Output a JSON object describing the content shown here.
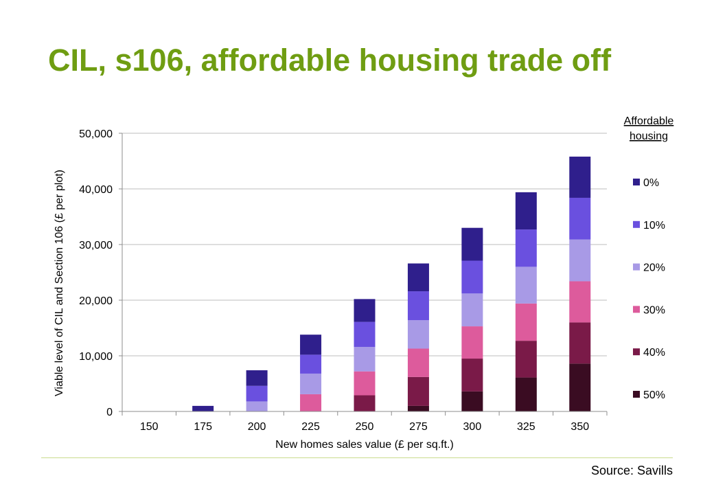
{
  "page": {
    "title": "CIL, s106, affordable housing trade off",
    "source": "Source: Savills"
  },
  "chart_data": {
    "type": "bar",
    "stacked": true,
    "title": "",
    "xlabel": "New homes sales value (£ per sq.ft.)",
    "ylabel": "Viable level of CIL and Section 106 (£ per plot)",
    "ylim": [
      0,
      50000
    ],
    "yticks": [
      "0",
      "10,000",
      "20,000",
      "30,000",
      "40,000",
      "50,000"
    ],
    "ytick_values": [
      0,
      10000,
      20000,
      30000,
      40000,
      50000
    ],
    "grid": true,
    "legend_title": "Affordable housing",
    "legend_position": "right",
    "categories": [
      "150",
      "175",
      "200",
      "225",
      "250",
      "275",
      "300",
      "325",
      "350"
    ],
    "series": [
      {
        "name": "50%",
        "color": "#3a0c22",
        "values": [
          0,
          0,
          0,
          0,
          0,
          1000,
          3600,
          6100,
          8600
        ]
      },
      {
        "name": "40%",
        "color": "#7a1a48",
        "values": [
          0,
          0,
          0,
          0,
          2900,
          5200,
          5900,
          6600,
          7400
        ]
      },
      {
        "name": "30%",
        "color": "#dd5b9c",
        "values": [
          0,
          0,
          0,
          3100,
          4300,
          5100,
          5800,
          6700,
          7400
        ]
      },
      {
        "name": "20%",
        "color": "#a89ae6",
        "values": [
          0,
          0,
          1800,
          3700,
          4400,
          5100,
          5900,
          6600,
          7500
        ]
      },
      {
        "name": "10%",
        "color": "#6a50df",
        "values": [
          0,
          0,
          2800,
          3400,
          4500,
          5200,
          5900,
          6700,
          7500
        ]
      },
      {
        "name": "0%",
        "color": "#2f1f8c",
        "values": [
          0,
          1000,
          2800,
          3600,
          4100,
          5000,
          5900,
          6700,
          7400
        ]
      }
    ],
    "legend_order": [
      "0%",
      "10%",
      "20%",
      "30%",
      "40%",
      "50%"
    ]
  }
}
